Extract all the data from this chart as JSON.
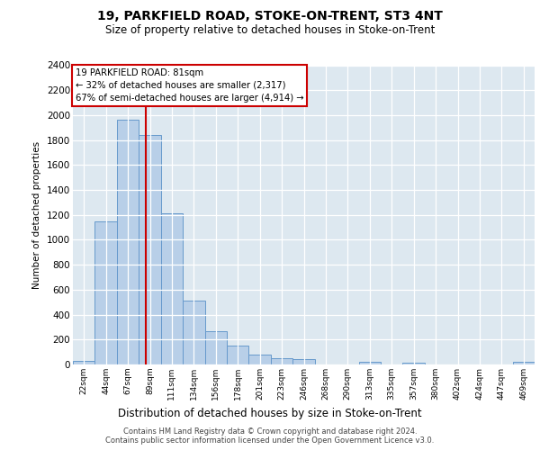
{
  "title": "19, PARKFIELD ROAD, STOKE-ON-TRENT, ST3 4NT",
  "subtitle": "Size of property relative to detached houses in Stoke-on-Trent",
  "xlabel": "Distribution of detached houses by size in Stoke-on-Trent",
  "ylabel": "Number of detached properties",
  "categories": [
    "22sqm",
    "44sqm",
    "67sqm",
    "89sqm",
    "111sqm",
    "134sqm",
    "156sqm",
    "178sqm",
    "201sqm",
    "223sqm",
    "246sqm",
    "268sqm",
    "290sqm",
    "313sqm",
    "335sqm",
    "357sqm",
    "380sqm",
    "402sqm",
    "424sqm",
    "447sqm",
    "469sqm"
  ],
  "values": [
    30,
    1150,
    1960,
    1840,
    1210,
    510,
    265,
    155,
    80,
    50,
    40,
    0,
    0,
    20,
    0,
    15,
    0,
    0,
    0,
    0,
    20
  ],
  "bar_color": "#b8cfe8",
  "bar_edge_color": "#6699cc",
  "annotation_box_text": "19 PARKFIELD ROAD: 81sqm\n← 32% of detached houses are smaller (2,317)\n67% of semi-detached houses are larger (4,914) →",
  "red_line_x": 2.82,
  "ylim": [
    0,
    2400
  ],
  "yticks": [
    0,
    200,
    400,
    600,
    800,
    1000,
    1200,
    1400,
    1600,
    1800,
    2000,
    2200,
    2400
  ],
  "bg_color": "#dde8f0",
  "grid_color": "#c8d8e8",
  "footer_line1": "Contains HM Land Registry data © Crown copyright and database right 2024.",
  "footer_line2": "Contains public sector information licensed under the Open Government Licence v3.0."
}
